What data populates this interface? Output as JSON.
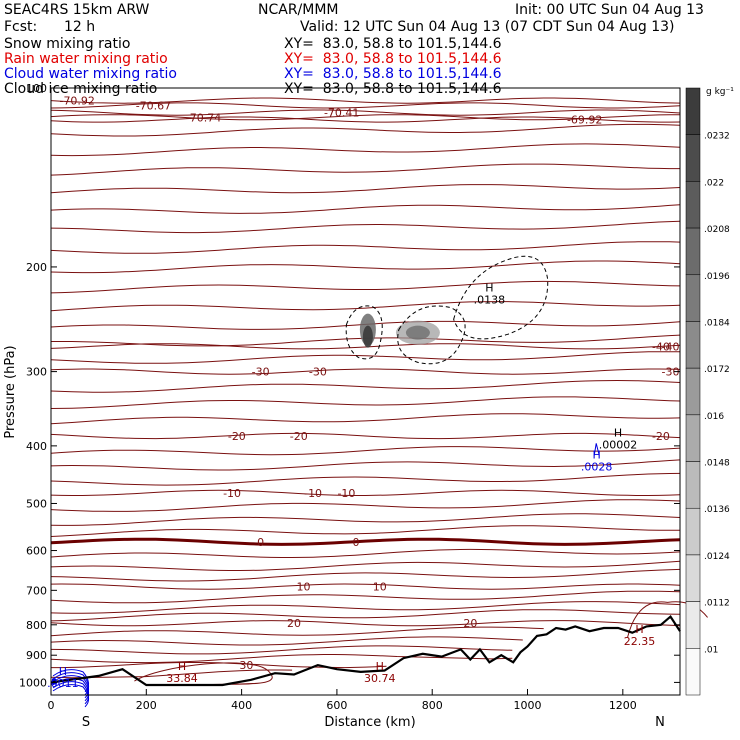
{
  "header": {
    "model": "SEAC4RS 15km ARW",
    "org": "NCAR/MMM",
    "init": "Init: 00 UTC Sun 04 Aug 13",
    "fcst_label": "Fcst:",
    "fcst_value": "12 h",
    "valid": "Valid: 12 UTC Sun 04 Aug 13 (07 CDT Sun 04 Aug 13)"
  },
  "legend": [
    {
      "label": "Snow mixing ratio",
      "xy": "XY=  83.0, 58.8 to 101.5,144.6",
      "color": "#000000"
    },
    {
      "label": "Rain water mixing ratio",
      "xy": "XY=  83.0, 58.8 to 101.5,144.6",
      "color": "#e00000"
    },
    {
      "label": "Cloud water mixing ratio",
      "xy": "XY=  83.0, 58.8 to 101.5,144.6",
      "color": "#0000e0"
    },
    {
      "label": "Cloud ice mixing ratio",
      "xy": "XY=  83.0, 58.8 to 101.5,144.6",
      "color": "#000000"
    }
  ],
  "chart_data": {
    "type": "cross-section",
    "xlabel": "Distance (km)",
    "ylabel": "Pressure (hPa)",
    "xlim": [
      0,
      1320
    ],
    "ylim": [
      1050,
      100
    ],
    "y_log": true,
    "x_ticks": [
      0,
      200,
      400,
      600,
      800,
      1000,
      1200
    ],
    "y_ticks": [
      100,
      200,
      300,
      400,
      500,
      600,
      700,
      800,
      900,
      1000
    ],
    "direction_labels": {
      "left": "S",
      "right": "N"
    },
    "colorbar": {
      "unit": "g kg⁻¹",
      "labels": [
        ".0232",
        ".022",
        ".0208",
        ".0196",
        ".0184",
        ".0172",
        ".016",
        ".0148",
        ".0136",
        ".0124",
        ".0112",
        ".01"
      ]
    },
    "temperature_contours": [
      {
        "level": -70.92,
        "label": "-70.92",
        "p": 105
      },
      {
        "level": -70.67,
        "label": "-70.67",
        "p": 107
      },
      {
        "level": -70.74,
        "label": "-70.74",
        "p": 112
      },
      {
        "level": -70.41,
        "label": "-70.41",
        "p": 110
      },
      {
        "level": -69.92,
        "label": "-69.92",
        "p": 113
      },
      {
        "level": -40,
        "label": "-40",
        "p": 272
      },
      {
        "level": -30,
        "label": "-30",
        "p": 300
      },
      {
        "level": -20,
        "label": "-20",
        "p": 385
      },
      {
        "level": -10,
        "label": "-10",
        "p": 480
      },
      {
        "level": 0,
        "label": "0",
        "p": 580
      },
      {
        "level": 10,
        "label": "10",
        "p": 690
      },
      {
        "level": 20,
        "label": "20",
        "p": 795
      },
      {
        "level": 30,
        "label": "30",
        "p": 935
      }
    ],
    "extrema_labels": [
      {
        "mark": "H",
        "value": "33.84",
        "x": 275,
        "p": 975,
        "color": "#8b0000"
      },
      {
        "mark": "H",
        "value": "30.74",
        "x": 690,
        "p": 975,
        "color": "#8b0000"
      },
      {
        "mark": "H",
        "value": "22.35",
        "x": 1235,
        "p": 845,
        "color": "#8b0000"
      },
      {
        "mark": "H",
        "value": ".0138",
        "x": 920,
        "p": 225,
        "color": "#000000"
      },
      {
        "mark": "H",
        "value": ".00002",
        "x": 1190,
        "p": 395,
        "color": "#000000"
      },
      {
        "mark": "H",
        "value": ".0028",
        "x": 1145,
        "p": 430,
        "color": "#0000e0"
      },
      {
        "mark": "H",
        "value": ".0011",
        "x": 25,
        "p": 995,
        "color": "#0000e0"
      }
    ],
    "terrain": [
      [
        0,
        1000
      ],
      [
        60,
        985
      ],
      [
        100,
        975
      ],
      [
        150,
        950
      ],
      [
        200,
        1010
      ],
      [
        300,
        1010
      ],
      [
        360,
        1010
      ],
      [
        420,
        990
      ],
      [
        470,
        965
      ],
      [
        510,
        970
      ],
      [
        560,
        935
      ],
      [
        600,
        950
      ],
      [
        650,
        960
      ],
      [
        700,
        955
      ],
      [
        740,
        910
      ],
      [
        780,
        895
      ],
      [
        820,
        905
      ],
      [
        860,
        880
      ],
      [
        880,
        915
      ],
      [
        900,
        880
      ],
      [
        920,
        925
      ],
      [
        945,
        900
      ],
      [
        970,
        925
      ],
      [
        985,
        890
      ],
      [
        1000,
        870
      ],
      [
        1020,
        835
      ],
      [
        1040,
        830
      ],
      [
        1060,
        810
      ],
      [
        1080,
        815
      ],
      [
        1100,
        805
      ],
      [
        1130,
        820
      ],
      [
        1160,
        810
      ],
      [
        1190,
        810
      ],
      [
        1220,
        825
      ],
      [
        1250,
        805
      ],
      [
        1280,
        800
      ],
      [
        1300,
        775
      ],
      [
        1320,
        820
      ]
    ]
  }
}
